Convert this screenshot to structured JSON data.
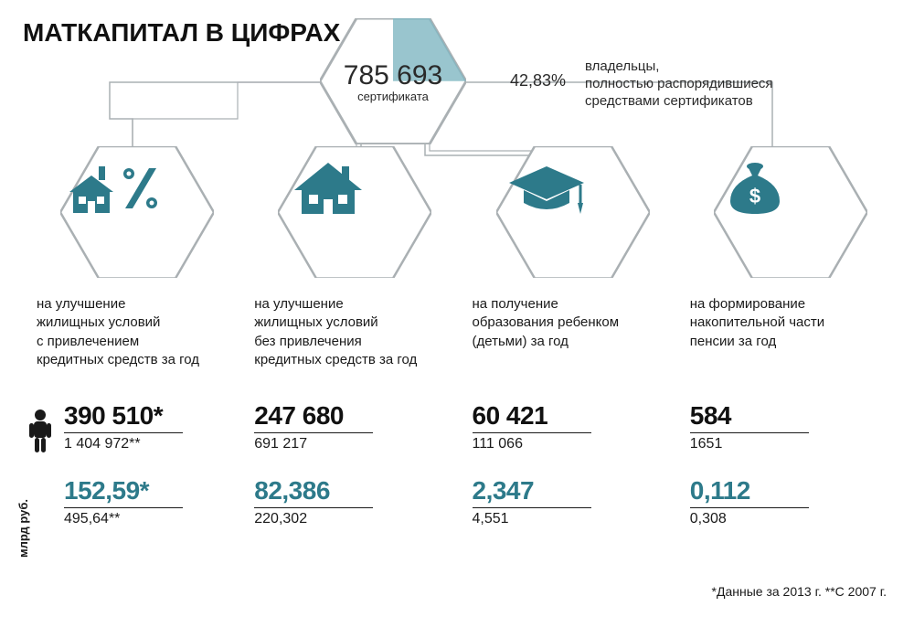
{
  "title": "МАТКАПИТАЛ В ЦИФРАХ",
  "top": {
    "number": "785 693",
    "label": "сертификата",
    "pct": "42,83%",
    "pct_desc": "владельцы,<br>полностью распорядившиеся<br>средствами сертификатов"
  },
  "colors": {
    "primary": "#2d7a8a",
    "hex_border": "#aab0b3",
    "hex_fill": "#ffffff",
    "hex_top_fill": "#7fb6c2",
    "icon_fill": "#2d7a8a",
    "text": "#1a1a1a"
  },
  "cols": [
    {
      "icon": "house-percent",
      "desc": "на улучшение<br>жилищных условий<br>с привлечением<br>кредитных средств за год",
      "people_primary": "390 510*",
      "people_secondary": "1 404 972**",
      "money_primary": "152,59*",
      "money_secondary": "495,64**"
    },
    {
      "icon": "house",
      "desc": "на улучшение<br>жилищных условий<br>без привлечения<br>кредитных средств за год",
      "people_primary": "247 680",
      "people_secondary": "691 217",
      "money_primary": "82,386",
      "money_secondary": "220,302"
    },
    {
      "icon": "gradcap",
      "desc": "на получение<br>образования ребенком<br>(детьми) за год",
      "people_primary": "60 421",
      "people_secondary": "111 066",
      "money_primary": "2,347",
      "money_secondary": "4,551"
    },
    {
      "icon": "moneybag",
      "desc": "на формирование<br>накопительной части<br>пенсии за год",
      "people_primary": "584",
      "people_secondary": "1651",
      "money_primary": "0,112",
      "money_secondary": "0,308"
    }
  ],
  "side_label": "млрд руб.",
  "footnotes": "*Данные за 2013 г.   **С 2007 г."
}
